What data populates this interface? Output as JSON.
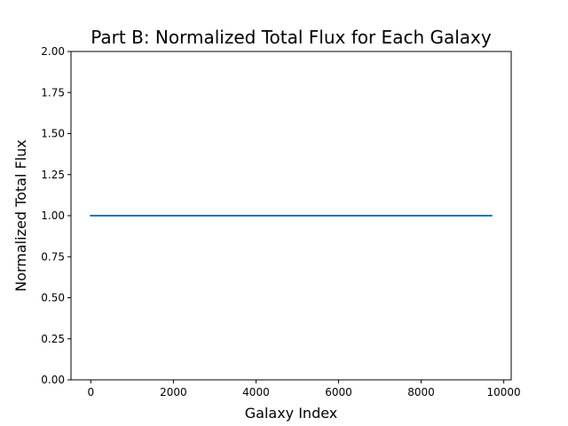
{
  "chart_data": {
    "type": "line",
    "title": "Part B: Normalized Total Flux for Each Galaxy",
    "xlabel": "Galaxy Index",
    "ylabel": "Normalized Total Flux",
    "xlim": [
      -480,
      10180
    ],
    "ylim": [
      0,
      2
    ],
    "x_ticks": [
      0,
      2000,
      4000,
      6000,
      8000,
      10000
    ],
    "x_tick_labels": [
      "0",
      "2000",
      "4000",
      "6000",
      "8000",
      "10000"
    ],
    "y_ticks": [
      0,
      0.25,
      0.5,
      0.75,
      1.0,
      1.25,
      1.5,
      1.75,
      2.0
    ],
    "y_tick_labels": [
      "0.00",
      "0.25",
      "0.50",
      "0.75",
      "1.00",
      "1.25",
      "1.50",
      "1.75",
      "2.00"
    ],
    "grid": false,
    "series": [
      {
        "color": "#1f77b4",
        "x": [
          0,
          9700
        ],
        "y": [
          1.0,
          1.0
        ]
      }
    ]
  }
}
